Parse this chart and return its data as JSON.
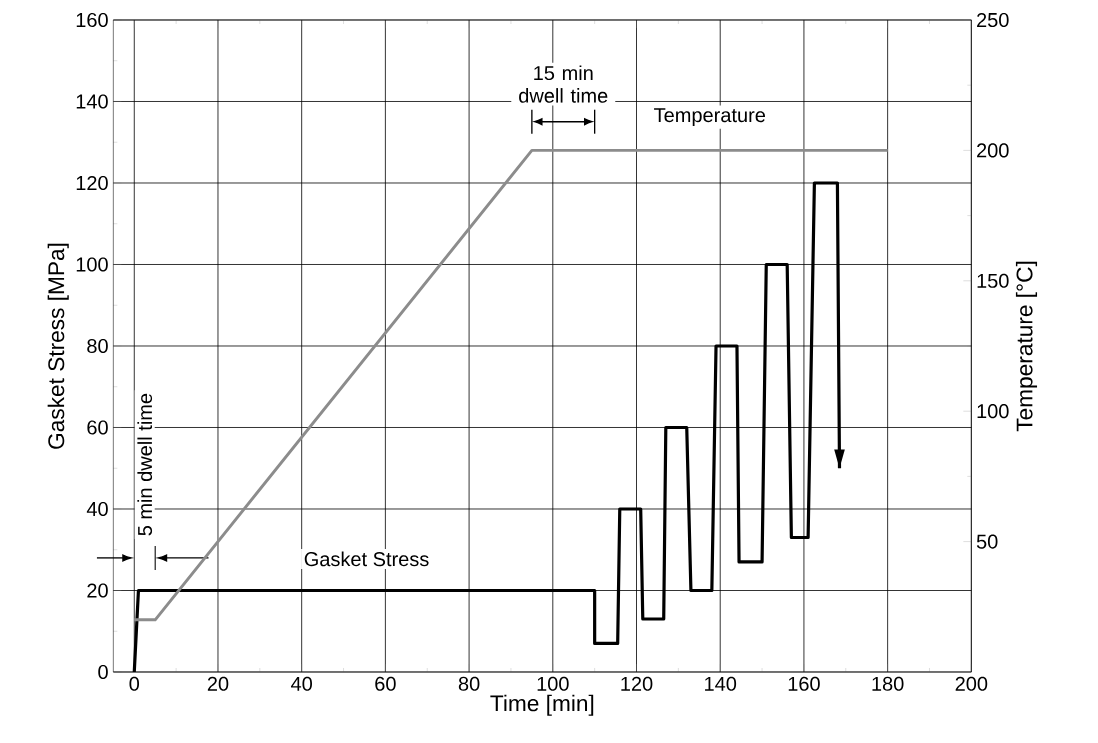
{
  "chart_data": {
    "type": "line",
    "xlabel": "Time  [min]",
    "ylabel": "Gasket Stress  [MPa]",
    "y2label": "Temperature [°C]",
    "xlim": [
      -5,
      200
    ],
    "xticks": [
      0,
      20,
      40,
      60,
      80,
      100,
      120,
      140,
      160,
      180,
      200
    ],
    "ylim": [
      0,
      160
    ],
    "yticks": [
      0,
      20,
      40,
      60,
      80,
      100,
      120,
      140,
      160
    ],
    "y2lim": [
      0,
      250
    ],
    "y2ticks": [
      50,
      100,
      150,
      200,
      250
    ],
    "grid": true,
    "marker": "none",
    "line_style": "solid",
    "series": [
      {
        "name": "Gasket Stress",
        "color": "#000000",
        "x": [
          0,
          1,
          110,
          110,
          115.5,
          116,
          121,
          121.5,
          126.5,
          127,
          132,
          133,
          138,
          139,
          144,
          144.5,
          150,
          151,
          156,
          157,
          161,
          162.5,
          168,
          168.5
        ],
        "values": [
          0,
          20,
          20,
          7,
          7,
          40,
          40,
          13,
          13,
          60,
          60,
          20,
          20,
          80,
          80,
          27,
          27,
          100,
          100,
          33,
          33,
          120,
          120,
          50
        ]
      },
      {
        "name": "Temperature",
        "color": "#8c8c8c",
        "axis": "y2",
        "x": [
          0,
          5,
          95,
          180
        ],
        "values": [
          20,
          20,
          200,
          200
        ]
      }
    ],
    "annotations": [
      "15 min dwell time",
      "5 min dwell time"
    ]
  }
}
